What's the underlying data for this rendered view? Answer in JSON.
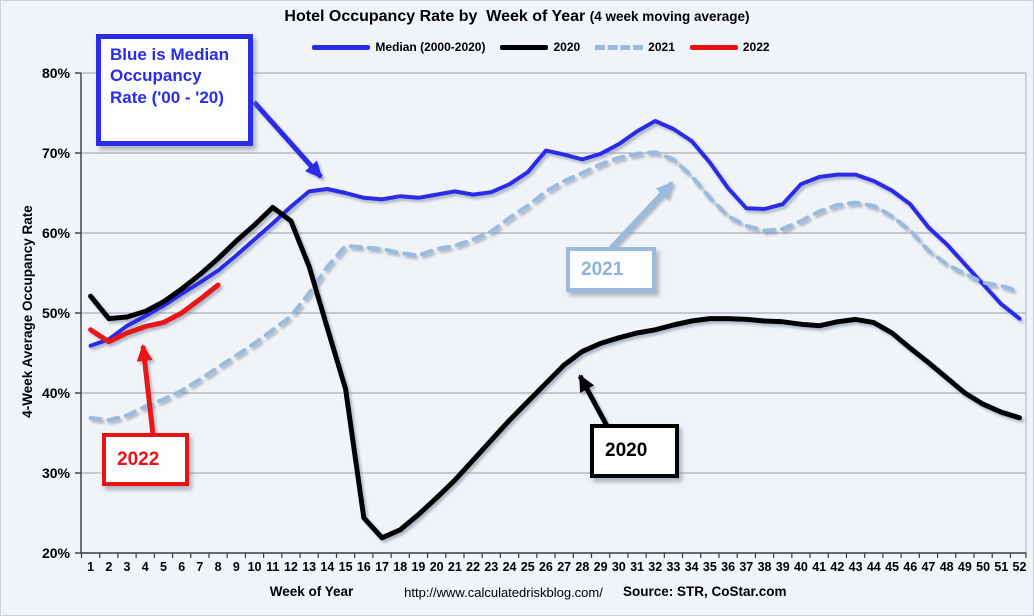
{
  "title": {
    "main": "Hotel Occupancy Rate by  Week of Year",
    "paren": "(4 week moving average)"
  },
  "y_axis": {
    "title": "4-Week Average Occupancy Rate",
    "ticks": [
      "80%",
      "70%",
      "60%",
      "50%",
      "40%",
      "30%",
      "20%"
    ],
    "min": 20,
    "max": 80
  },
  "x_axis": {
    "title": "Week of Year"
  },
  "footer": {
    "url": "http://www.calculatedriskblog.com/",
    "source": "Source: STR, CoStar.com"
  },
  "annotations": {
    "blue_note": {
      "lines": [
        "Blue is Median",
        "Occupancy",
        "Rate ('00 - '20)"
      ],
      "color": "#2b2be8"
    },
    "y2021": {
      "label": "2021",
      "color": "#9cbade"
    },
    "y2020": {
      "label": "2020",
      "color": "#000000"
    },
    "y2022": {
      "label": "2022",
      "color": "#e81212"
    }
  },
  "chart_data": {
    "type": "line",
    "title": "Hotel Occupancy Rate by Week of Year (4 week moving average)",
    "xlabel": "Week of Year",
    "ylabel": "4-Week Average Occupancy Rate",
    "ylim": [
      20,
      80
    ],
    "y_tick_step": 10,
    "grid": true,
    "legend_position": "top",
    "x": [
      1,
      2,
      3,
      4,
      5,
      6,
      7,
      8,
      9,
      10,
      11,
      12,
      13,
      14,
      15,
      16,
      17,
      18,
      19,
      20,
      21,
      22,
      23,
      24,
      25,
      26,
      27,
      28,
      29,
      30,
      31,
      32,
      33,
      34,
      35,
      36,
      37,
      38,
      39,
      40,
      41,
      42,
      43,
      44,
      45,
      46,
      47,
      48,
      49,
      50,
      51,
      52
    ],
    "series": [
      {
        "name": "Median (2000-2020)",
        "color": "#2b2be8",
        "dash": null,
        "width": 4,
        "values": [
          45.9,
          46.7,
          48.4,
          49.6,
          50.9,
          52.4,
          53.8,
          55.3,
          57.2,
          59.2,
          61.2,
          63.3,
          65.2,
          65.5,
          65.0,
          64.4,
          64.2,
          64.6,
          64.4,
          64.8,
          65.2,
          64.8,
          65.1,
          66.1,
          67.6,
          70.3,
          69.8,
          69.2,
          69.9,
          71.1,
          72.7,
          74.0,
          73.0,
          71.5,
          68.8,
          65.6,
          63.1,
          63.0,
          63.6,
          66.1,
          67.0,
          67.3,
          67.3,
          66.5,
          65.3,
          63.6,
          60.7,
          58.6,
          56.1,
          53.6,
          51.1,
          49.3
        ]
      },
      {
        "name": "2021",
        "color": "#9cbade",
        "dash": "10 8",
        "width": 4,
        "values": [
          36.9,
          36.6,
          37.2,
          38.3,
          39.2,
          40.3,
          41.7,
          43.2,
          44.7,
          46.2,
          47.9,
          49.6,
          52.5,
          55.8,
          58.4,
          58.2,
          58.0,
          57.5,
          57.2,
          58.0,
          58.4,
          59.2,
          60.2,
          61.9,
          63.4,
          65.2,
          66.5,
          67.5,
          68.6,
          69.4,
          69.9,
          70.1,
          69.2,
          67.1,
          64.4,
          62.1,
          60.9,
          60.3,
          60.5,
          61.5,
          62.7,
          63.5,
          63.8,
          63.4,
          62.1,
          60.3,
          57.8,
          56.1,
          54.9,
          53.8,
          53.4,
          52.7
        ]
      },
      {
        "name": "2020",
        "color": "#000000",
        "dash": null,
        "width": 5,
        "values": [
          52.1,
          49.3,
          49.5,
          50.2,
          51.4,
          53.0,
          54.8,
          56.8,
          59.0,
          61.0,
          63.2,
          61.5,
          55.8,
          48.1,
          40.5,
          24.4,
          21.9,
          22.9,
          24.8,
          26.9,
          29.1,
          31.6,
          34.1,
          36.6,
          38.9,
          41.2,
          43.5,
          45.2,
          46.2,
          46.9,
          47.5,
          47.9,
          48.5,
          49.0,
          49.3,
          49.3,
          49.2,
          49.0,
          48.9,
          48.6,
          48.4,
          48.9,
          49.2,
          48.8,
          47.5,
          45.6,
          43.8,
          41.9,
          40.0,
          38.6,
          37.6,
          36.9
        ]
      },
      {
        "name": "2022",
        "color": "#e81212",
        "dash": null,
        "width": 5,
        "values": [
          47.9,
          46.4,
          47.5,
          48.3,
          48.8,
          50.0,
          51.7,
          53.5
        ]
      }
    ],
    "legend_order": [
      "Median (2000-2020)",
      "2020",
      "2021",
      "2022"
    ]
  }
}
